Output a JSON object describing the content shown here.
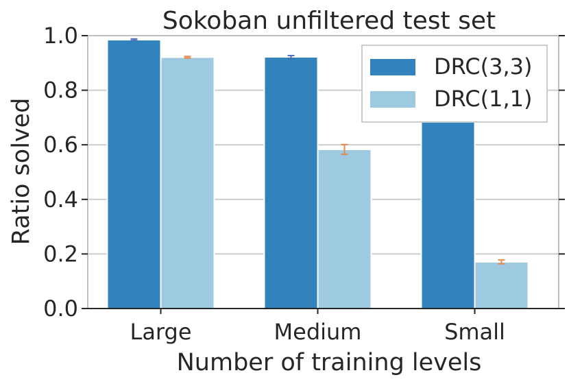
{
  "chart_data": {
    "type": "bar",
    "title": "Sokoban unfiltered test set",
    "xlabel": "Number of training levels",
    "ylabel": "Ratio solved",
    "categories": [
      "Large",
      "Medium",
      "Small"
    ],
    "ylim": [
      0,
      1.0
    ],
    "yticks": [
      "0.0",
      "0.2",
      "0.4",
      "0.6",
      "0.8",
      "1.0"
    ],
    "grid": "horizontal",
    "legend_position": "top-right",
    "series": [
      {
        "name": "DRC(3,3)",
        "color": "#3182bd",
        "error_color": "#4a6fb5",
        "values": [
          0.985,
          0.922,
          0.685
        ],
        "errors": [
          0.003,
          0.005,
          0.0
        ]
      },
      {
        "name": "DRC(1,1)",
        "color": "#9ecae1",
        "error_color": "#e6894f",
        "values": [
          0.921,
          0.583,
          0.171
        ],
        "errors": [
          0.003,
          0.018,
          0.007
        ]
      }
    ]
  }
}
